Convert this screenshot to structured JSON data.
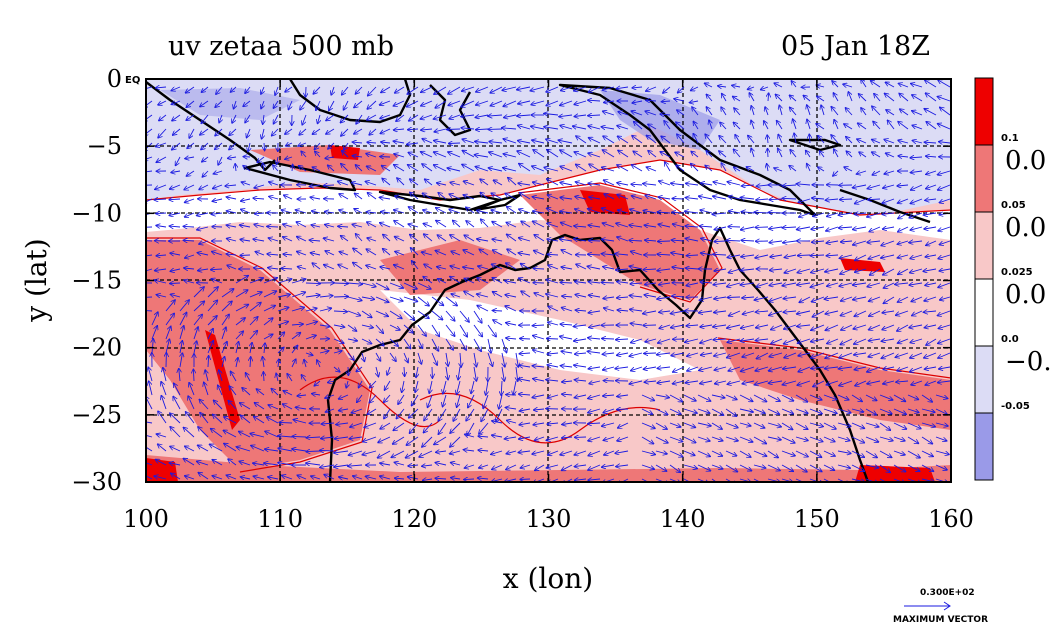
{
  "chart_data": {
    "type": "heatmap",
    "title_left": "uv zetaa 500 mb",
    "title_right": "05 Jan 18Z",
    "xlabel": "x (lon)",
    "ylabel": "y (lat)",
    "xlim": [
      100,
      160
    ],
    "ylim": [
      -30,
      0
    ],
    "x_ticks": [
      100,
      110,
      120,
      130,
      140,
      150,
      160
    ],
    "x_tick_labels": [
      "100",
      "110",
      "120",
      "130",
      "140",
      "150",
      "160"
    ],
    "y_ticks": [
      0,
      -5,
      -10,
      -15,
      -20,
      -25,
      -30
    ],
    "y_tick_labels": [
      "0",
      "−5",
      "−10",
      "−15",
      "−20",
      "−25",
      "−30"
    ],
    "y_top_suffix": "EQ",
    "grid": true,
    "colorbar": {
      "levels": [
        "0.1",
        "0.05",
        "0.025",
        "0.0",
        "-0.05"
      ],
      "side_labels": [
        "0.0",
        "0.0",
        "0.0",
        "−0."
      ],
      "colors": [
        "#ee0000",
        "#ee7777",
        "#f8c8c8",
        "#ffffff",
        "#dcdcf5",
        "#9a9ae8"
      ]
    },
    "vector_reference": {
      "value": "0.300E+02",
      "label": "MAXIMUM VECTOR"
    },
    "colors": {
      "coast": "#000000",
      "contour": "#dd0000",
      "vector": "#1a1ae0",
      "grid": "#000000"
    }
  }
}
